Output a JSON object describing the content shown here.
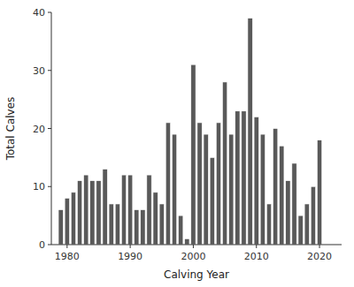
{
  "chart_data": {
    "type": "bar",
    "x": [
      1979,
      1980,
      1981,
      1982,
      1983,
      1984,
      1985,
      1986,
      1987,
      1988,
      1989,
      1990,
      1991,
      1992,
      1993,
      1994,
      1995,
      1996,
      1997,
      1998,
      1999,
      2000,
      2001,
      2002,
      2003,
      2004,
      2005,
      2006,
      2007,
      2008,
      2009,
      2010,
      2011,
      2012,
      2013,
      2014,
      2015,
      2016,
      2017,
      2018,
      2019,
      2020,
      2021,
      2022
    ],
    "values": [
      6,
      8,
      9,
      11,
      12,
      11,
      11,
      13,
      7,
      7,
      12,
      12,
      6,
      6,
      12,
      9,
      7,
      21,
      19,
      5,
      1,
      31,
      21,
      19,
      15,
      21,
      28,
      19,
      23,
      23,
      39,
      22,
      19,
      7,
      20,
      17,
      11,
      14,
      5,
      7,
      10,
      18,
      0,
      0
    ],
    "color": "#595959",
    "xlabel": "Calving Year",
    "ylabel": "Total Calves",
    "xlim": [
      1977.5,
      2023.5
    ],
    "ylim": [
      0,
      40
    ],
    "xticks": [
      1980,
      1990,
      2000,
      2010,
      2020
    ],
    "yticks": [
      0,
      10,
      20,
      30,
      40
    ],
    "grid": false
  }
}
